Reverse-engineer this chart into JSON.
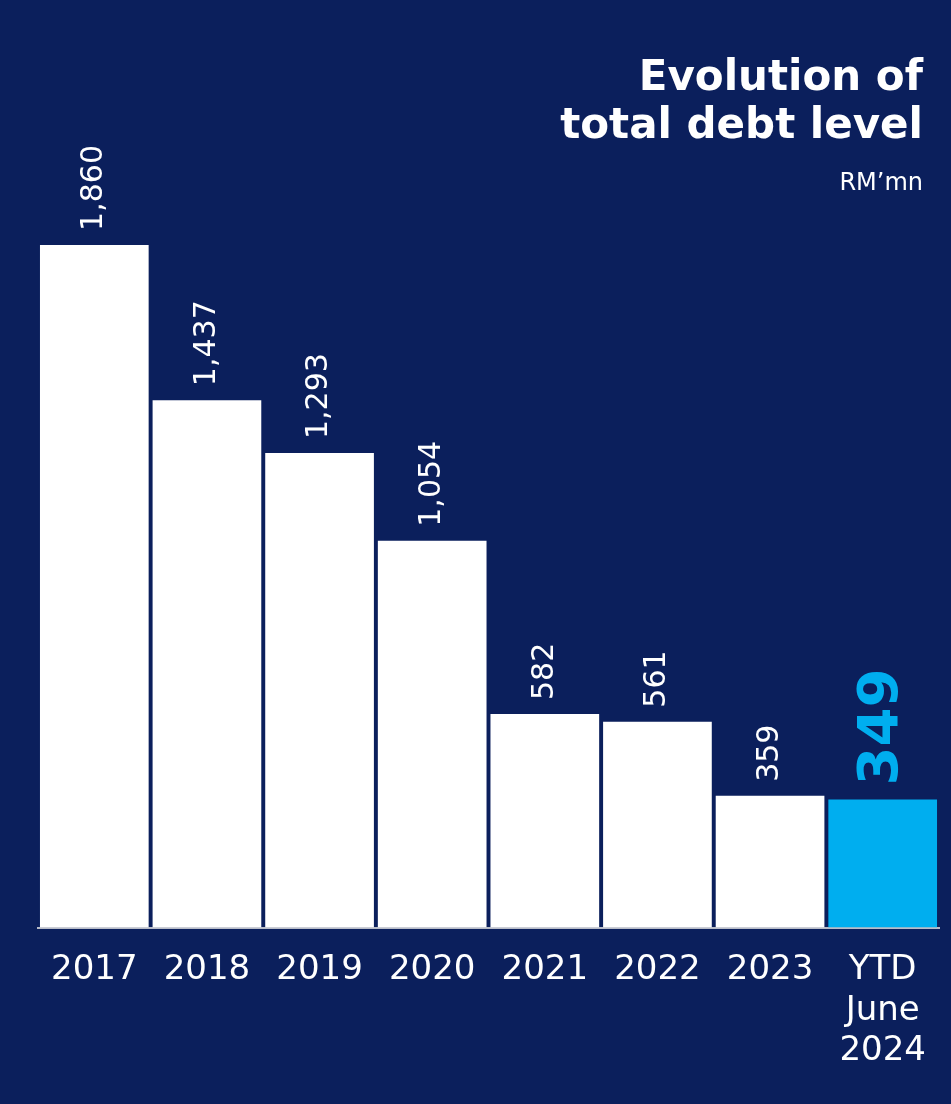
{
  "chart_data": {
    "type": "bar",
    "title": "Evolution of total debt level",
    "subtitle": "RM’mn",
    "categories": [
      "2017",
      "2018",
      "2019",
      "2020",
      "2021",
      "2022",
      "2023",
      "YTD June 2024"
    ],
    "values": [
      1860,
      1437,
      1293,
      1054,
      582,
      561,
      359,
      349
    ],
    "colors": [
      "#ffffff",
      "#ffffff",
      "#ffffff",
      "#ffffff",
      "#ffffff",
      "#ffffff",
      "#ffffff",
      "#00aeef"
    ],
    "value_labels": [
      "1,860",
      "1,437",
      "1,293",
      "1,054",
      "582",
      "561",
      "359",
      "349"
    ],
    "grid": false,
    "legend": false
  }
}
